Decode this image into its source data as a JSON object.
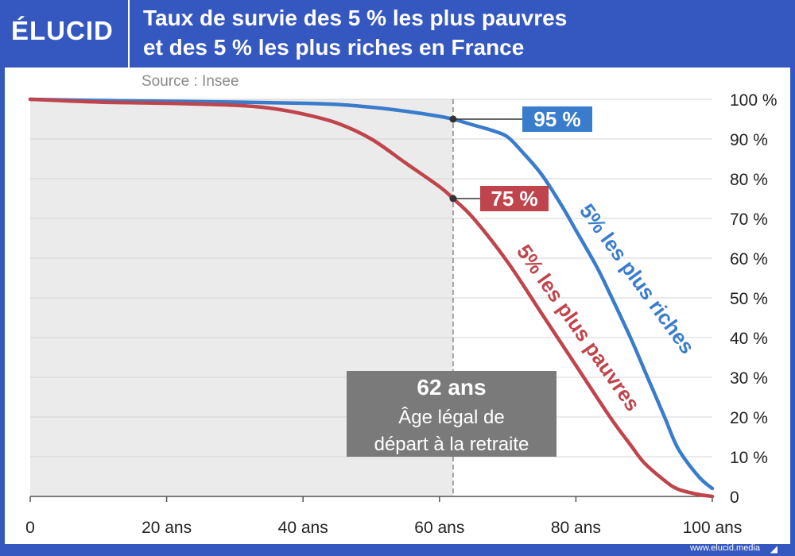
{
  "header": {
    "logo": "ÉLUCID",
    "title_line1": "Taux de survie des 5 % les plus pauvres",
    "title_line2": "et des 5 % les plus riches en France"
  },
  "footer": {
    "url": "www.elucid.media"
  },
  "colors": {
    "frame": "#3558c0",
    "rich": "#3a7ccc",
    "poor": "#c0444b",
    "shade": "#ebebeb",
    "annotation_box": "#7a7a7a"
  },
  "chart_data": {
    "type": "line",
    "subtitle": "Source : Insee",
    "xlim": [
      0,
      100
    ],
    "ylim": [
      0,
      100
    ],
    "x_tick_labels": [
      "0",
      "20 ans",
      "40 ans",
      "60 ans",
      "80 ans",
      "100 ans"
    ],
    "x_ticks": [
      0,
      20,
      40,
      60,
      80,
      100
    ],
    "y_tick_labels": [
      "0",
      "10 %",
      "20 %",
      "30 %",
      "40 %",
      "50 %",
      "60 %",
      "70 %",
      "80 %",
      "90 %",
      "100 %"
    ],
    "y_ticks": [
      0,
      10,
      20,
      30,
      40,
      50,
      60,
      70,
      80,
      90,
      100
    ],
    "y_axis_side": "right",
    "grid": "horizontal",
    "series": [
      {
        "name": "5% les plus riches",
        "color": "#3a7ccc",
        "x": [
          0,
          10,
          20,
          30,
          40,
          45,
          50,
          55,
          60,
          62,
          65,
          68,
          70,
          72,
          75,
          78,
          80,
          83,
          85,
          88,
          90,
          93,
          95,
          98,
          100
        ],
        "y": [
          100,
          99.7,
          99.5,
          99.3,
          99,
          98.7,
          98,
          97,
          95.7,
          95,
          93.5,
          92,
          90.5,
          87,
          81,
          73,
          67,
          58,
          51,
          40,
          32,
          20,
          12,
          5,
          2
        ]
      },
      {
        "name": "5% les plus pauvres",
        "color": "#c0444b",
        "x": [
          0,
          10,
          20,
          30,
          35,
          40,
          45,
          50,
          55,
          60,
          62,
          65,
          70,
          75,
          80,
          85,
          88,
          90,
          93,
          95,
          98,
          100
        ],
        "y": [
          100,
          99.3,
          99,
          98.5,
          97.8,
          96.3,
          94,
          90,
          84,
          78,
          75,
          70,
          59,
          46,
          33,
          20,
          13,
          8.5,
          4,
          1.8,
          0.5,
          0
        ]
      }
    ],
    "shaded_range_x": [
      0,
      62
    ],
    "reference_line": {
      "x": 62,
      "style": "dashed"
    },
    "point_labels": [
      {
        "series": "5% les plus riches",
        "x": 62,
        "y": 95,
        "text": "95 %"
      },
      {
        "series": "5% les plus pauvres",
        "x": 62,
        "y": 75,
        "text": "75 %"
      }
    ],
    "annotation": {
      "title": "62 ans",
      "line1": "Âge légal de",
      "line2": "départ à la retraite"
    }
  }
}
